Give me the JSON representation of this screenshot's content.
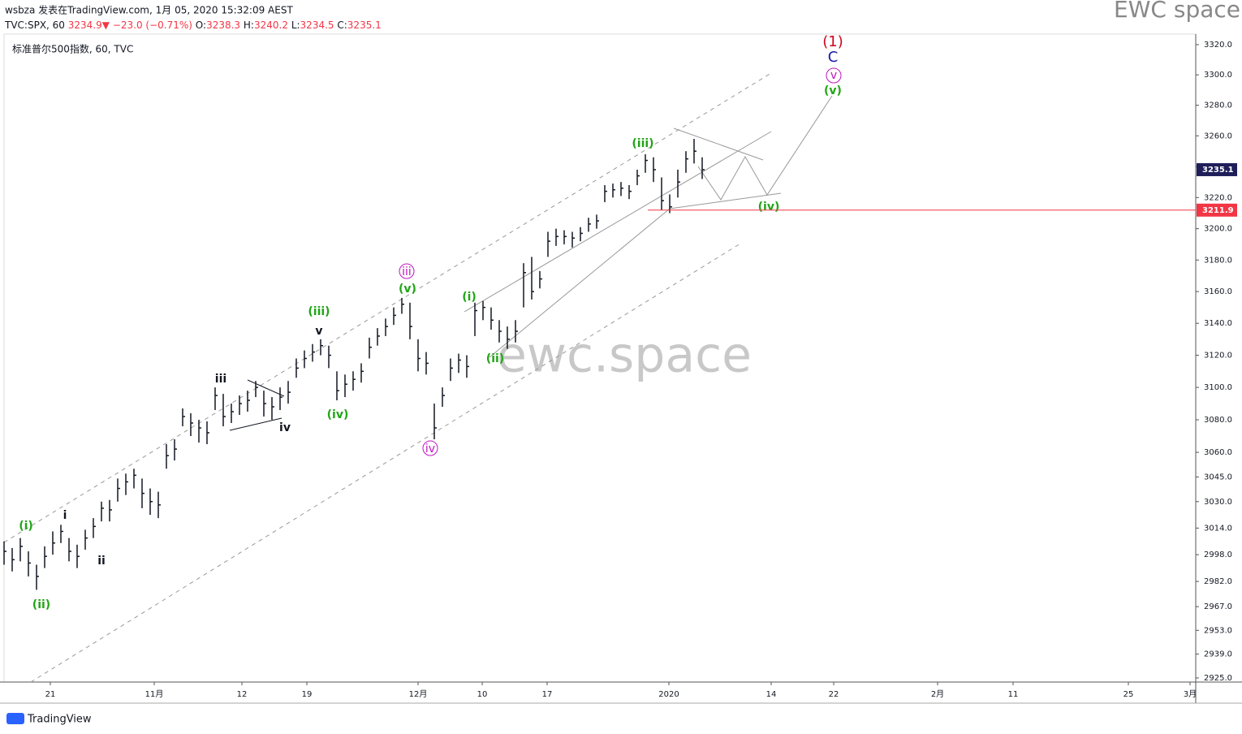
{
  "header": {
    "publisher": "wsbza 发表在TradingView.com, 1月 05, 2020 15:32:09 AEST",
    "brand": "EWC space",
    "symbol": "TVC:SPX, 60",
    "last": "3234.9",
    "arrow": "▼",
    "change": "−23.0 (−0.71%)",
    "o_label": "O:",
    "open": "3238.3",
    "h_label": "H:",
    "high": "3240.2",
    "l_label": "L:",
    "low": "3234.5",
    "c_label": "C:",
    "close": "3235.1"
  },
  "legend": "标准普尔500指数, 60, TVC",
  "watermark": "ewc.space",
  "footer": "TradingView",
  "chart_data": {
    "type": "ohlc",
    "log_scale": true,
    "x": [
      0,
      1,
      2,
      3,
      4,
      5,
      6,
      7,
      8,
      9,
      10,
      11,
      12,
      13,
      14,
      15,
      16,
      17,
      18,
      19,
      20,
      21,
      22,
      23,
      24,
      25,
      26,
      27,
      28,
      29,
      30,
      31,
      32,
      33,
      34,
      35,
      36,
      37,
      38,
      39,
      40,
      41,
      42,
      43,
      44,
      45,
      46,
      47,
      48,
      49,
      50,
      51,
      52,
      53,
      54,
      55,
      56,
      57,
      58,
      59,
      60,
      61,
      62,
      63,
      64,
      65,
      66,
      67,
      68,
      69,
      70,
      71,
      72,
      73,
      74,
      75,
      76,
      77,
      78,
      79,
      80,
      81,
      82,
      83,
      84,
      85,
      86
    ],
    "high": [
      3006,
      3002,
      3008,
      3000,
      2992,
      3003,
      3012,
      3016,
      3008,
      3004,
      3013,
      3020,
      3030,
      3031,
      3044,
      3047,
      3050,
      3044,
      3038,
      3036,
      3065,
      3068,
      3087,
      3084,
      3080,
      3079,
      3100,
      3096,
      3090,
      3095,
      3098,
      3104,
      3098,
      3094,
      3100,
      3104,
      3118,
      3123,
      3127,
      3130,
      3126,
      3110,
      3108,
      3110,
      3115,
      3131,
      3137,
      3143,
      3150,
      3156,
      3153,
      3130,
      3122,
      3090,
      3100,
      3118,
      3121,
      3120,
      3153,
      3154,
      3150,
      3142,
      3138,
      3142,
      3178,
      3182,
      3173,
      3198,
      3200,
      3199,
      3198,
      3201,
      3207,
      3209,
      3228,
      3229,
      3230,
      3228,
      3238,
      3248,
      3246,
      3233,
      3222,
      3238,
      3250,
      3258,
      3246
    ],
    "low": [
      2992,
      2988,
      2994,
      2985,
      2977,
      2990,
      2998,
      3005,
      2994,
      2990,
      3001,
      3008,
      3018,
      3018,
      3030,
      3034,
      3038,
      3026,
      3022,
      3020,
      3050,
      3055,
      3076,
      3070,
      3066,
      3065,
      3086,
      3076,
      3078,
      3083,
      3085,
      3094,
      3082,
      3080,
      3086,
      3090,
      3106,
      3112,
      3116,
      3120,
      3112,
      3092,
      3094,
      3098,
      3103,
      3118,
      3126,
      3132,
      3139,
      3146,
      3130,
      3110,
      3108,
      3068,
      3088,
      3104,
      3109,
      3106,
      3132,
      3142,
      3136,
      3128,
      3124,
      3128,
      3150,
      3155,
      3162,
      3182,
      3189,
      3190,
      3188,
      3192,
      3198,
      3200,
      3217,
      3220,
      3221,
      3219,
      3228,
      3236,
      3230,
      3212,
      3210,
      3220,
      3236,
      3242,
      3232
    ],
    "close": [
      3000,
      2995,
      3003,
      2993,
      2985,
      2997,
      3005,
      3012,
      3000,
      2997,
      3008,
      3015,
      3026,
      3025,
      3038,
      3042,
      3046,
      3035,
      3030,
      3028,
      3058,
      3062,
      3082,
      3078,
      3075,
      3072,
      3095,
      3082,
      3085,
      3090,
      3092,
      3100,
      3090,
      3088,
      3094,
      3097,
      3112,
      3118,
      3122,
      3126,
      3120,
      3098,
      3102,
      3105,
      3110,
      3125,
      3132,
      3138,
      3145,
      3152,
      3138,
      3118,
      3115,
      3075,
      3095,
      3112,
      3117,
      3113,
      3148,
      3150,
      3142,
      3135,
      3130,
      3135,
      3172,
      3160,
      3168,
      3192,
      3195,
      3195,
      3194,
      3197,
      3203,
      3205,
      3224,
      3225,
      3226,
      3224,
      3234,
      3244,
      3238,
      3218,
      3214,
      3230,
      3245,
      3250,
      3238
    ],
    "color": "#131722",
    "level": 3211.9,
    "level_label": "3211.9",
    "level_color": "#f23645",
    "xlim": [
      0,
      146.8
    ],
    "ylim": [
      2922.6,
      3327
    ],
    "xticks": [
      {
        "value": 5.7,
        "label": "21"
      },
      {
        "value": 18.5,
        "label": "11月"
      },
      {
        "value": 29.3,
        "label": "12"
      },
      {
        "value": 37.3,
        "label": "19"
      },
      {
        "value": 51,
        "label": "12月"
      },
      {
        "value": 58.9,
        "label": "10"
      },
      {
        "value": 66.9,
        "label": "17"
      },
      {
        "value": 81.9,
        "label": "2020"
      },
      {
        "value": 94.5,
        "label": "14"
      },
      {
        "value": 102.2,
        "label": "22"
      },
      {
        "value": 115,
        "label": "2月"
      },
      {
        "value": 124.3,
        "label": "11"
      },
      {
        "value": 138.5,
        "label": "25"
      },
      {
        "value": 146.1,
        "label": "3月"
      }
    ],
    "yticks": [
      {
        "value": 2925,
        "label": "2925.0"
      },
      {
        "value": 2939,
        "label": "2939.0"
      },
      {
        "value": 2953,
        "label": "2953.0"
      },
      {
        "value": 2967,
        "label": "2967.0"
      },
      {
        "value": 2982,
        "label": "2982.0"
      },
      {
        "value": 2998,
        "label": "2998.0"
      },
      {
        "value": 3014,
        "label": "3014.0"
      },
      {
        "value": 3030,
        "label": "3030.0"
      },
      {
        "value": 3045,
        "label": "3045.0"
      },
      {
        "value": 3060,
        "label": "3060.0"
      },
      {
        "value": 3080,
        "label": "3080.0"
      },
      {
        "value": 3100,
        "label": "3100.0"
      },
      {
        "value": 3120,
        "label": "3120.0"
      },
      {
        "value": 3140,
        "label": "3140.0"
      },
      {
        "value": 3160,
        "label": "3160.0"
      },
      {
        "value": 3180,
        "label": "3180.0"
      },
      {
        "value": 3200,
        "label": "3200.0"
      },
      {
        "value": 3220,
        "label": "3220.0"
      },
      {
        "value": 3240,
        "label": "3240.0"
      },
      {
        "value": 3260,
        "label": "3260.0"
      },
      {
        "value": 3280,
        "label": "3280.0"
      },
      {
        "value": 3300,
        "label": "3300.0"
      },
      {
        "value": 3320,
        "label": "3320.0"
      }
    ],
    "annotations": [
      "(i)",
      "(ii)",
      "i",
      "ii",
      "iii",
      "iv",
      "(iii)",
      "v",
      "(iv)",
      "iii",
      "(v)",
      "iv",
      "(i)",
      "(ii)",
      "(iii)",
      "(iv)",
      "(1)",
      "C",
      "v",
      "(v)"
    ]
  }
}
